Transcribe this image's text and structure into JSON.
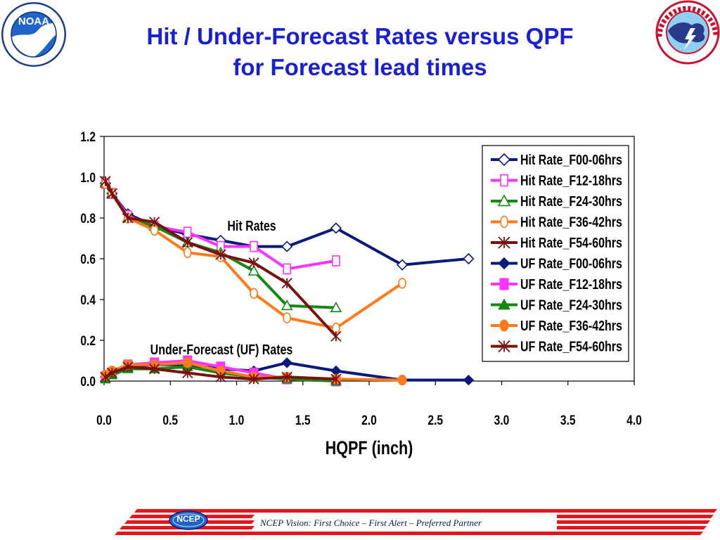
{
  "slide": {
    "title_line1": "Hit / Under-Forecast Rates versus QPF",
    "title_line2": "for Forecast lead times",
    "logos": {
      "left": {
        "icon": "noaa-logo",
        "text": "NOAA"
      },
      "right": {
        "icon": "national-weather-service-logo"
      }
    },
    "footer": {
      "ncep_badge": "NCEP",
      "vision": "NCEP Vision:  First Choice – First Alert – Preferred Partner"
    }
  },
  "colors": {
    "title": "#1a1fd1",
    "footer_stripe": "#e4161b",
    "navy": "#0a1a7a",
    "magenta": "#ff33ff",
    "green": "#128a12",
    "orange": "#ff7a1a",
    "maroon": "#7a1010"
  },
  "chart_data": {
    "type": "line",
    "title": "",
    "xlabel": "HQPF (inch)",
    "ylabel": "",
    "xlim": [
      0,
      4
    ],
    "ylim": [
      0,
      1.2
    ],
    "x_ticks": [
      "0.0",
      "0.5",
      "1.0",
      "1.5",
      "2.0",
      "2.5",
      "3.0",
      "3.5",
      "4.0"
    ],
    "y_ticks": [
      "0.0",
      "0.2",
      "0.4",
      "0.6",
      "0.8",
      "1.0",
      "1.2"
    ],
    "grid": false,
    "legend_position": "top-right",
    "annotations": [
      "Hit Rates",
      "Under-Forecast (UF) Rates"
    ],
    "series": [
      {
        "name": "Hit Rate_F00-06hrs",
        "color": "#0a1a7a",
        "marker": "diamond-open",
        "points": [
          [
            0.01,
            0.97
          ],
          [
            0.06,
            0.92
          ],
          [
            0.18,
            0.82
          ],
          [
            0.38,
            0.76
          ],
          [
            0.63,
            0.72
          ],
          [
            0.88,
            0.69
          ],
          [
            1.13,
            0.66
          ],
          [
            1.38,
            0.66
          ],
          [
            1.75,
            0.75
          ],
          [
            2.25,
            0.57
          ],
          [
            2.75,
            0.6
          ]
        ]
      },
      {
        "name": "Hit Rate_F12-18hrs",
        "color": "#ff33ff",
        "marker": "square-open",
        "points": [
          [
            0.01,
            0.97
          ],
          [
            0.06,
            0.92
          ],
          [
            0.18,
            0.81
          ],
          [
            0.38,
            0.76
          ],
          [
            0.63,
            0.73
          ],
          [
            0.88,
            0.66
          ],
          [
            1.13,
            0.66
          ],
          [
            1.38,
            0.55
          ],
          [
            1.75,
            0.59
          ]
        ]
      },
      {
        "name": "Hit Rate_F24-30hrs",
        "color": "#128a12",
        "marker": "triangle-open",
        "points": [
          [
            0.01,
            0.97
          ],
          [
            0.06,
            0.92
          ],
          [
            0.18,
            0.8
          ],
          [
            0.38,
            0.76
          ],
          [
            0.63,
            0.68
          ],
          [
            0.88,
            0.63
          ],
          [
            1.13,
            0.54
          ],
          [
            1.38,
            0.37
          ],
          [
            1.75,
            0.36
          ]
        ]
      },
      {
        "name": "Hit Rate_F36-42hrs",
        "color": "#ff7a1a",
        "marker": "circle-open",
        "points": [
          [
            0.01,
            0.97
          ],
          [
            0.06,
            0.92
          ],
          [
            0.18,
            0.8
          ],
          [
            0.38,
            0.74
          ],
          [
            0.63,
            0.63
          ],
          [
            0.88,
            0.61
          ],
          [
            1.13,
            0.43
          ],
          [
            1.38,
            0.31
          ],
          [
            1.75,
            0.26
          ],
          [
            2.25,
            0.48
          ]
        ]
      },
      {
        "name": "Hit Rate_F54-60hrs",
        "color": "#7a1010",
        "marker": "star",
        "points": [
          [
            0.01,
            0.98
          ],
          [
            0.06,
            0.92
          ],
          [
            0.18,
            0.8
          ],
          [
            0.38,
            0.78
          ],
          [
            0.63,
            0.68
          ],
          [
            0.88,
            0.62
          ],
          [
            1.13,
            0.58
          ],
          [
            1.38,
            0.48
          ],
          [
            1.75,
            0.22
          ]
        ]
      },
      {
        "name": "UF Rate_F00-06hrs",
        "color": "#0a1a7a",
        "marker": "diamond-filled",
        "points": [
          [
            0.01,
            0.02
          ],
          [
            0.06,
            0.04
          ],
          [
            0.18,
            0.07
          ],
          [
            0.38,
            0.08
          ],
          [
            0.63,
            0.08
          ],
          [
            0.88,
            0.06
          ],
          [
            1.13,
            0.05
          ],
          [
            1.38,
            0.09
          ],
          [
            1.75,
            0.05
          ],
          [
            2.25,
            0.005
          ],
          [
            2.75,
            0.005
          ]
        ]
      },
      {
        "name": "UF Rate_F12-18hrs",
        "color": "#ff33ff",
        "marker": "square-filled",
        "points": [
          [
            0.01,
            0.02
          ],
          [
            0.06,
            0.04
          ],
          [
            0.18,
            0.08
          ],
          [
            0.38,
            0.09
          ],
          [
            0.63,
            0.1
          ],
          [
            0.88,
            0.07
          ],
          [
            1.13,
            0.04
          ],
          [
            1.38,
            0.01
          ],
          [
            1.75,
            0.0
          ]
        ]
      },
      {
        "name": "UF Rate_F24-30hrs",
        "color": "#128a12",
        "marker": "triangle-filled",
        "points": [
          [
            0.01,
            0.01
          ],
          [
            0.06,
            0.03
          ],
          [
            0.18,
            0.06
          ],
          [
            0.38,
            0.06
          ],
          [
            0.63,
            0.07
          ],
          [
            0.88,
            0.04
          ],
          [
            1.13,
            0.02
          ],
          [
            1.38,
            0.01
          ],
          [
            1.75,
            0.0
          ]
        ]
      },
      {
        "name": "UF Rate_F36-42hrs",
        "color": "#ff7a1a",
        "marker": "circle-filled",
        "points": [
          [
            0.01,
            0.03
          ],
          [
            0.06,
            0.05
          ],
          [
            0.18,
            0.08
          ],
          [
            0.38,
            0.08
          ],
          [
            0.63,
            0.09
          ],
          [
            0.88,
            0.05
          ],
          [
            1.13,
            0.02
          ],
          [
            1.38,
            0.02
          ],
          [
            1.75,
            0.01
          ],
          [
            2.25,
            0.005
          ]
        ]
      },
      {
        "name": "UF Rate_F54-60hrs",
        "color": "#7a1010",
        "marker": "star",
        "points": [
          [
            0.01,
            0.02
          ],
          [
            0.06,
            0.04
          ],
          [
            0.18,
            0.07
          ],
          [
            0.38,
            0.06
          ],
          [
            0.63,
            0.04
          ],
          [
            0.88,
            0.02
          ],
          [
            1.13,
            0.01
          ],
          [
            1.38,
            0.02
          ],
          [
            1.75,
            0.01
          ]
        ]
      }
    ]
  }
}
